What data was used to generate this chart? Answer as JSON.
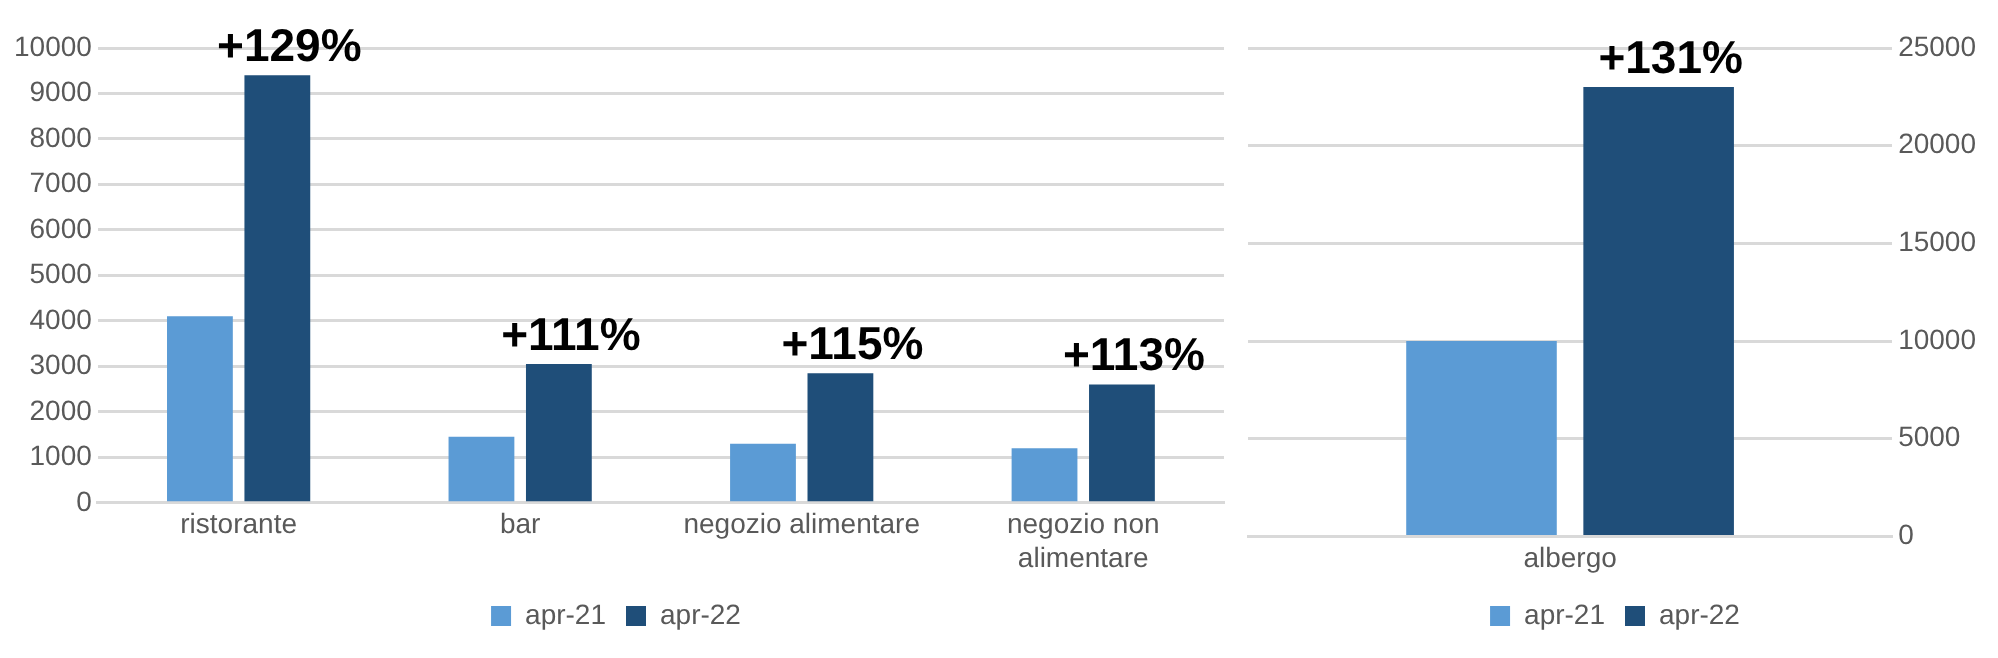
{
  "chart_data": [
    {
      "type": "bar",
      "categories": [
        "ristorante",
        "bar",
        "negozio alimentare",
        "negozio non alimentare"
      ],
      "series": [
        {
          "name": "apr-21",
          "color": "#5b9bd5",
          "values": [
            4100,
            1450,
            1300,
            1200
          ]
        },
        {
          "name": "apr-22",
          "color": "#1f4e79",
          "values": [
            9400,
            3050,
            2850,
            2600
          ]
        }
      ],
      "ylim": [
        0,
        10000
      ],
      "yticks": [
        0,
        1000,
        2000,
        3000,
        4000,
        5000,
        6000,
        7000,
        8000,
        9000,
        10000
      ],
      "grid": "y",
      "legend": "bottom",
      "annotations": [
        {
          "text": "+129%",
          "x": "ristorante",
          "y": 9400
        },
        {
          "text": "+111%",
          "x": "bar",
          "y": 3050
        },
        {
          "text": "+115%",
          "x": "negozio alimentare",
          "y": 2850
        },
        {
          "text": "+113%",
          "x": "negozio non alimentare",
          "y": 2600
        }
      ]
    },
    {
      "type": "bar",
      "categories": [
        "albergo"
      ],
      "series": [
        {
          "name": "apr-21",
          "color": "#5b9bd5",
          "values": [
            10000
          ]
        },
        {
          "name": "apr-22",
          "color": "#1f4e79",
          "values": [
            23000
          ]
        }
      ],
      "ylim": [
        0,
        25000
      ],
      "yticks": [
        0,
        5000,
        10000,
        15000,
        20000,
        25000
      ],
      "grid": "y",
      "legend": "bottom",
      "annotations": [
        "+131%"
      ]
    }
  ]
}
